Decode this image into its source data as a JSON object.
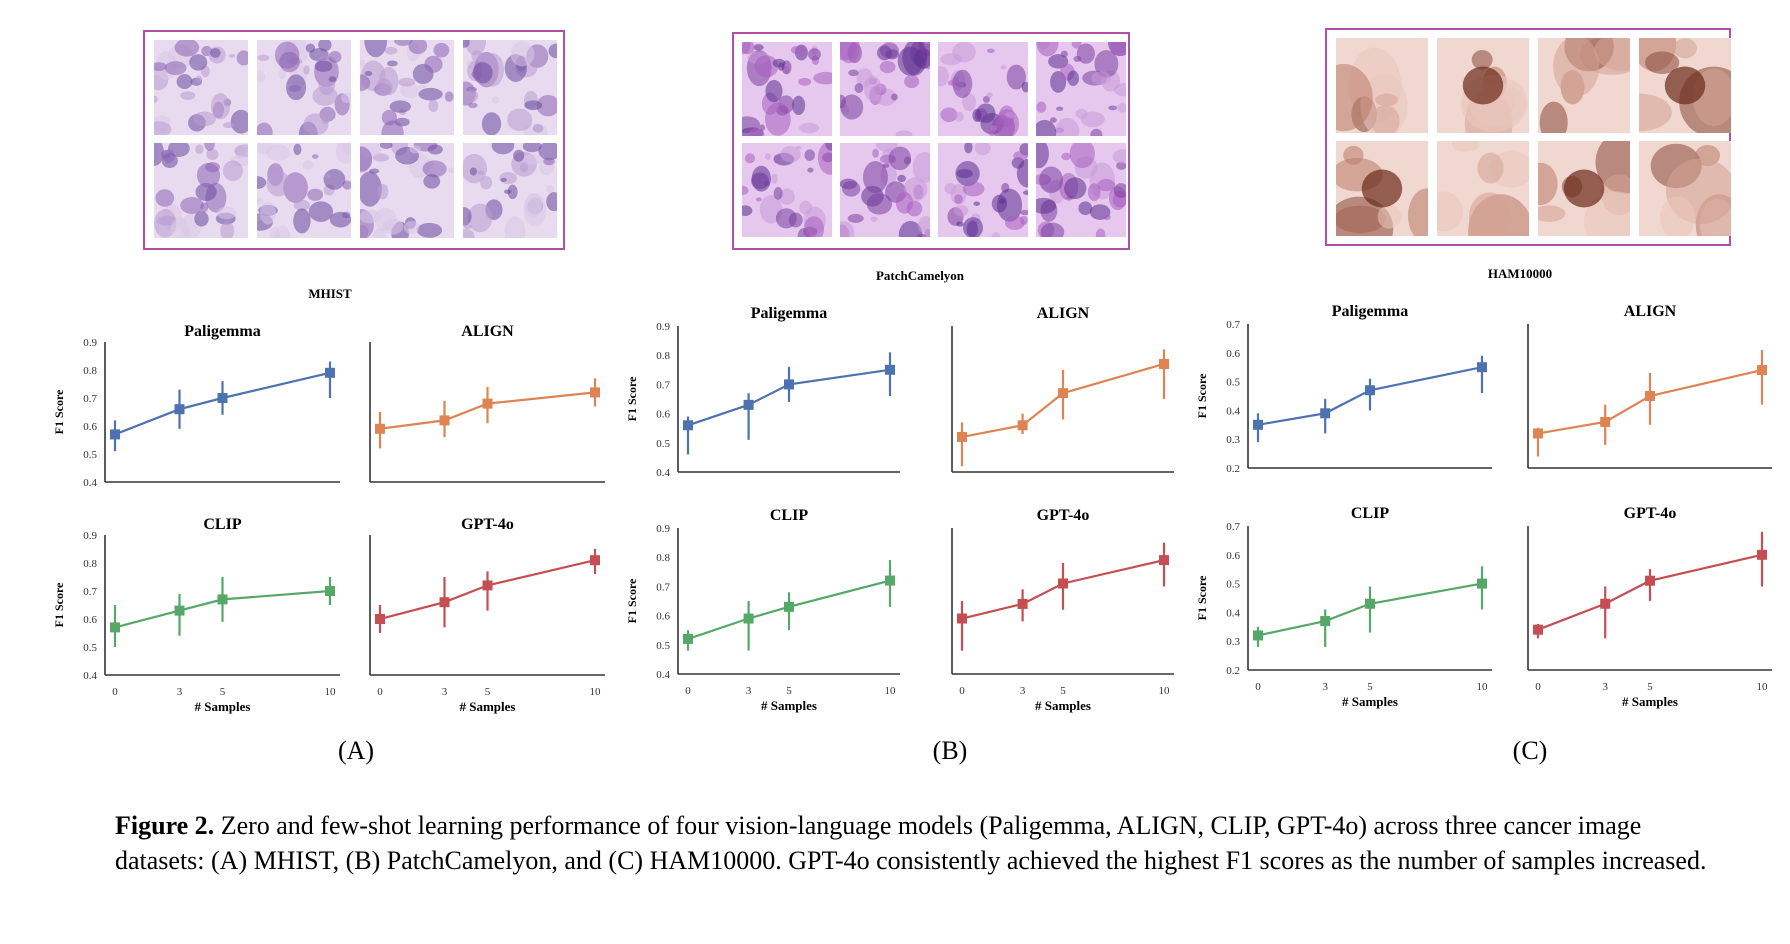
{
  "thumb_palettes": {
    "he": [
      "#b89ad0",
      "#8c63b4",
      "#d9c6e6",
      "#6a4a9e",
      "#e8dbef"
    ],
    "pcam": [
      "#7a3fa0",
      "#a85ec0",
      "#5b2f8f",
      "#c99ad8",
      "#e6c7ee"
    ],
    "skin": [
      "#d4a394",
      "#b97b6a",
      "#e9c7bd",
      "#8a4a3a",
      "#f0d7cf"
    ]
  },
  "datasets": [
    {
      "panel": "(A)",
      "name": "MHIST",
      "thumb_theme": "he",
      "subplots": [
        {
          "title": "Paligemma",
          "color": "#4c72b0",
          "ylim": [
            0.4,
            0.9
          ],
          "yticks": [
            "0.9",
            "0.8",
            "0.7",
            "0.6",
            "0.5",
            "0.4"
          ],
          "x": [
            0,
            3,
            5,
            10
          ],
          "y": [
            0.57,
            0.66,
            0.7,
            0.79
          ],
          "err_lo": [
            0.51,
            0.59,
            0.64,
            0.7
          ],
          "err_hi": [
            0.62,
            0.73,
            0.76,
            0.83
          ]
        },
        {
          "title": "ALIGN",
          "color": "#dd8452",
          "ylim": [
            0.4,
            0.9
          ],
          "yticks": [],
          "x": [
            0,
            3,
            5,
            10
          ],
          "y": [
            0.59,
            0.62,
            0.68,
            0.72
          ],
          "err_lo": [
            0.52,
            0.56,
            0.61,
            0.67
          ],
          "err_hi": [
            0.65,
            0.69,
            0.74,
            0.77
          ]
        },
        {
          "title": "CLIP",
          "color": "#55a868",
          "ylim": [
            0.4,
            0.9
          ],
          "yticks": [
            "0.9",
            "0.8",
            "0.7",
            "0.6",
            "0.5",
            "0.4"
          ],
          "x": [
            0,
            3,
            5,
            10
          ],
          "y": [
            0.57,
            0.63,
            0.67,
            0.7
          ],
          "err_lo": [
            0.5,
            0.54,
            0.59,
            0.65
          ],
          "err_hi": [
            0.65,
            0.69,
            0.75,
            0.75
          ]
        },
        {
          "title": "GPT-4o",
          "color": "#c44e52",
          "ylim": [
            0.4,
            0.9
          ],
          "yticks": [],
          "x": [
            0,
            3,
            5,
            10
          ],
          "y": [
            0.6,
            0.66,
            0.72,
            0.81
          ],
          "err_lo": [
            0.55,
            0.57,
            0.63,
            0.76
          ],
          "err_hi": [
            0.65,
            0.75,
            0.77,
            0.85
          ]
        }
      ]
    },
    {
      "panel": "(B)",
      "name": "PatchCamelyon",
      "thumb_theme": "pcam",
      "subplots": [
        {
          "title": "Paligemma",
          "color": "#4c72b0",
          "ylim": [
            0.4,
            0.9
          ],
          "yticks": [
            "0.9",
            "0.8",
            "0.7",
            "0.6",
            "0.5",
            "0.4"
          ],
          "x": [
            0,
            3,
            5,
            10
          ],
          "y": [
            0.56,
            0.63,
            0.7,
            0.75
          ],
          "err_lo": [
            0.46,
            0.51,
            0.64,
            0.66
          ],
          "err_hi": [
            0.59,
            0.67,
            0.76,
            0.81
          ]
        },
        {
          "title": "ALIGN",
          "color": "#dd8452",
          "ylim": [
            0.4,
            0.9
          ],
          "yticks": [],
          "x": [
            0,
            3,
            5,
            10
          ],
          "y": [
            0.52,
            0.56,
            0.67,
            0.77
          ],
          "err_lo": [
            0.42,
            0.53,
            0.58,
            0.65
          ],
          "err_hi": [
            0.57,
            0.6,
            0.75,
            0.82
          ]
        },
        {
          "title": "CLIP",
          "color": "#55a868",
          "ylim": [
            0.4,
            0.9
          ],
          "yticks": [
            "0.9",
            "0.8",
            "0.7",
            "0.6",
            "0.5",
            "0.4"
          ],
          "x": [
            0,
            3,
            5,
            10
          ],
          "y": [
            0.52,
            0.59,
            0.63,
            0.72
          ],
          "err_lo": [
            0.48,
            0.48,
            0.55,
            0.63
          ],
          "err_hi": [
            0.55,
            0.65,
            0.68,
            0.79
          ]
        },
        {
          "title": "GPT-4o",
          "color": "#c44e52",
          "ylim": [
            0.4,
            0.9
          ],
          "yticks": [],
          "x": [
            0,
            3,
            5,
            10
          ],
          "y": [
            0.59,
            0.64,
            0.71,
            0.79
          ],
          "err_lo": [
            0.48,
            0.58,
            0.62,
            0.7
          ],
          "err_hi": [
            0.65,
            0.69,
            0.78,
            0.85
          ]
        }
      ]
    },
    {
      "panel": "(C)",
      "name": "HAM10000",
      "thumb_theme": "skin",
      "subplots": [
        {
          "title": "Paligemma",
          "color": "#4c72b0",
          "ylim": [
            0.2,
            0.7
          ],
          "yticks": [
            "0.7",
            "0.6",
            "0.5",
            "0.4",
            "0.3",
            "0.2"
          ],
          "x": [
            0,
            3,
            5,
            10
          ],
          "y": [
            0.35,
            0.39,
            0.47,
            0.55
          ],
          "err_lo": [
            0.29,
            0.32,
            0.4,
            0.46
          ],
          "err_hi": [
            0.39,
            0.44,
            0.51,
            0.59
          ]
        },
        {
          "title": "ALIGN",
          "color": "#dd8452",
          "ylim": [
            0.2,
            0.7
          ],
          "yticks": [],
          "x": [
            0,
            3,
            5,
            10
          ],
          "y": [
            0.32,
            0.36,
            0.45,
            0.54
          ],
          "err_lo": [
            0.24,
            0.28,
            0.35,
            0.42
          ],
          "err_hi": [
            0.34,
            0.42,
            0.53,
            0.61
          ]
        },
        {
          "title": "CLIP",
          "color": "#55a868",
          "ylim": [
            0.2,
            0.7
          ],
          "yticks": [
            "0.7",
            "0.6",
            "0.5",
            "0.4",
            "0.3",
            "0.2"
          ],
          "x": [
            0,
            3,
            5,
            10
          ],
          "y": [
            0.32,
            0.37,
            0.43,
            0.5
          ],
          "err_lo": [
            0.28,
            0.28,
            0.33,
            0.41
          ],
          "err_hi": [
            0.35,
            0.41,
            0.49,
            0.56
          ]
        },
        {
          "title": "GPT-4o",
          "color": "#c44e52",
          "ylim": [
            0.2,
            0.7
          ],
          "yticks": [],
          "x": [
            0,
            3,
            5,
            10
          ],
          "y": [
            0.34,
            0.43,
            0.51,
            0.6
          ],
          "err_lo": [
            0.31,
            0.31,
            0.44,
            0.49
          ],
          "err_hi": [
            0.36,
            0.49,
            0.55,
            0.68
          ]
        }
      ]
    }
  ],
  "chart_data": {
    "type": "line",
    "ylabel": "F1 Score",
    "xlabel": "# Samples",
    "xticks": [
      "0",
      "3",
      "5",
      "10"
    ]
  },
  "caption": {
    "label": "Figure 2.",
    "text": " Zero and few-shot learning performance of four vision-language models (Paligemma, ALIGN, CLIP, GPT-4o) across three cancer image datasets: (A) MHIST, (B) PatchCamelyon, and (C) HAM10000. GPT-4o consistently achieved the highest F1 scores as the number of samples increased."
  }
}
